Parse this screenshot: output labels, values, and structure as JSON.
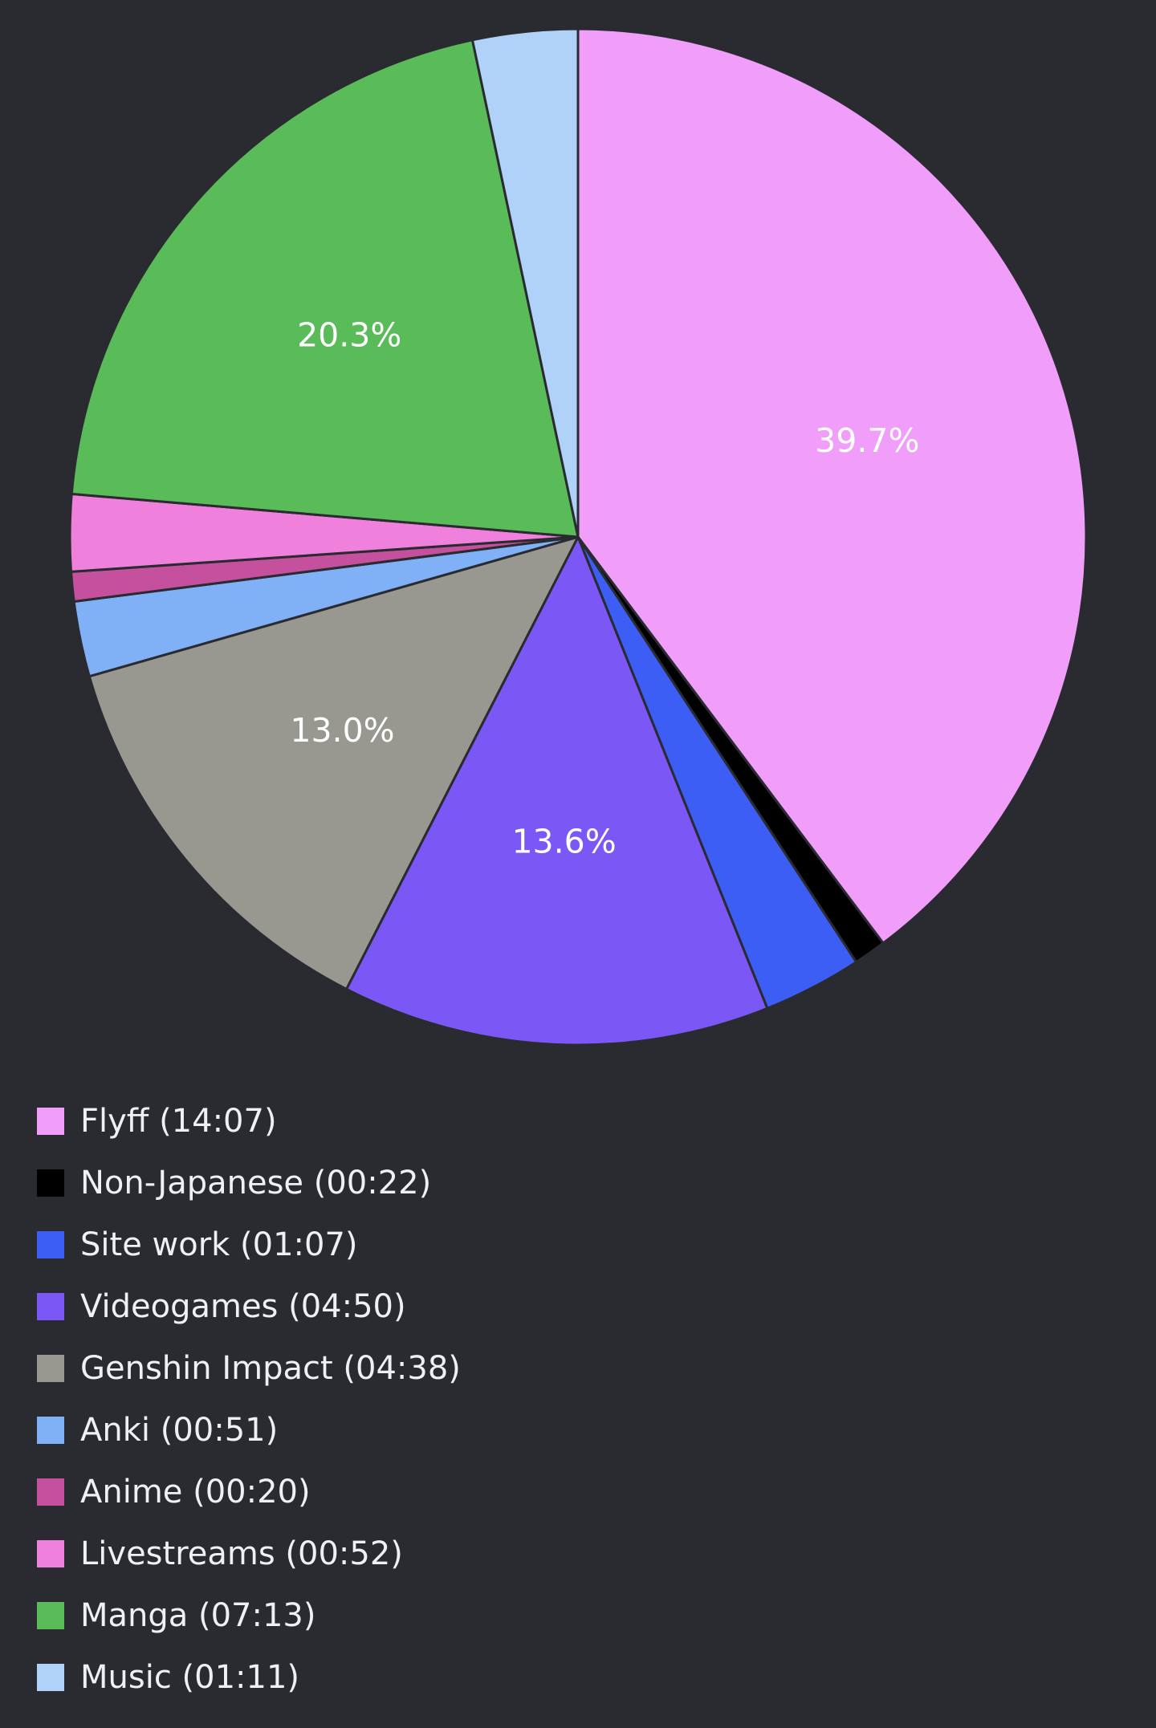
{
  "chart_data": {
    "type": "pie",
    "slices": [
      {
        "label": "Flyff (14:07)",
        "name": "Flyff",
        "minutes": 847,
        "percent_label": "39.7%",
        "color": "#f09ef9"
      },
      {
        "label": "Non-Japanese (00:22)",
        "name": "Non-Japanese",
        "minutes": 22,
        "percent_label": "",
        "color": "#000000"
      },
      {
        "label": "Site work (01:07)",
        "name": "Site work",
        "minutes": 67,
        "percent_label": "",
        "color": "#3d5ef5"
      },
      {
        "label": "Videogames (04:50)",
        "name": "Videogames",
        "minutes": 290,
        "percent_label": "13.6%",
        "color": "#7b57f5"
      },
      {
        "label": "Genshin Impact (04:38)",
        "name": "Genshin Impact",
        "minutes": 278,
        "percent_label": "13.0%",
        "color": "#989890"
      },
      {
        "label": "Anki (00:51)",
        "name": "Anki",
        "minutes": 51,
        "percent_label": "",
        "color": "#80b0f5"
      },
      {
        "label": "Anime (00:20)",
        "name": "Anime",
        "minutes": 20,
        "percent_label": "",
        "color": "#c4509e"
      },
      {
        "label": "Livestreams (00:52)",
        "name": "Livestreams",
        "minutes": 52,
        "percent_label": "",
        "color": "#ef80dc"
      },
      {
        "label": "Manga (07:13)",
        "name": "Manga",
        "minutes": 433,
        "percent_label": "20.3%",
        "color": "#5abc58"
      },
      {
        "label": "Music (01:11)",
        "name": "Music",
        "minutes": 71,
        "percent_label": "",
        "color": "#b0d2f8"
      }
    ],
    "legend_position": "bottom-left",
    "start_angle": "12 o'clock",
    "direction": "clockwise"
  },
  "colors": {
    "background": "#292b30",
    "slice_border": "#292b30",
    "text": "#eef0f4"
  }
}
